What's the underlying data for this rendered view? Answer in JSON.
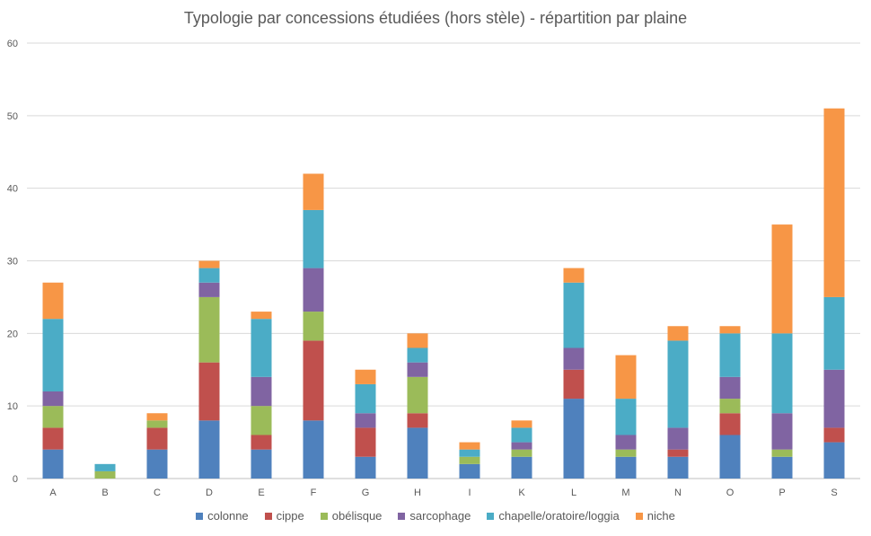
{
  "chart_data": {
    "type": "bar",
    "stacked": true,
    "title": "Typologie par concessions étudiées (hors stèle) - répartition par plaine",
    "xlabel": "",
    "ylabel": "",
    "ylim": [
      0,
      60
    ],
    "yticks": [
      0,
      10,
      20,
      30,
      40,
      50,
      60
    ],
    "grid": true,
    "legend_position": "bottom",
    "categories": [
      "A",
      "B",
      "C",
      "D",
      "E",
      "F",
      "G",
      "H",
      "I",
      "K",
      "L",
      "M",
      "N",
      "O",
      "P",
      "S"
    ],
    "series": [
      {
        "name": "colonne",
        "color": "#4f81bd",
        "values": [
          4,
          0,
          4,
          8,
          4,
          8,
          3,
          7,
          2,
          3,
          11,
          3,
          3,
          6,
          3,
          5
        ]
      },
      {
        "name": "cippe",
        "color": "#c0504d",
        "values": [
          3,
          0,
          3,
          8,
          2,
          11,
          4,
          2,
          0,
          0,
          4,
          0,
          1,
          3,
          0,
          2
        ]
      },
      {
        "name": "obélisque",
        "color": "#9bbb59",
        "values": [
          3,
          1,
          1,
          9,
          4,
          4,
          0,
          5,
          1,
          1,
          0,
          1,
          0,
          2,
          1,
          0
        ]
      },
      {
        "name": "sarcophage",
        "color": "#8064a2",
        "values": [
          2,
          0,
          0,
          2,
          4,
          6,
          2,
          2,
          0,
          1,
          3,
          2,
          3,
          3,
          5,
          8
        ]
      },
      {
        "name": "chapelle/oratoire/loggia",
        "color": "#4bacc6",
        "values": [
          10,
          1,
          0,
          2,
          8,
          8,
          4,
          2,
          1,
          2,
          9,
          5,
          12,
          6,
          11,
          10
        ]
      },
      {
        "name": "niche",
        "color": "#f79646",
        "values": [
          5,
          0,
          1,
          1,
          1,
          5,
          2,
          2,
          1,
          1,
          2,
          6,
          2,
          1,
          15,
          26
        ]
      }
    ]
  }
}
